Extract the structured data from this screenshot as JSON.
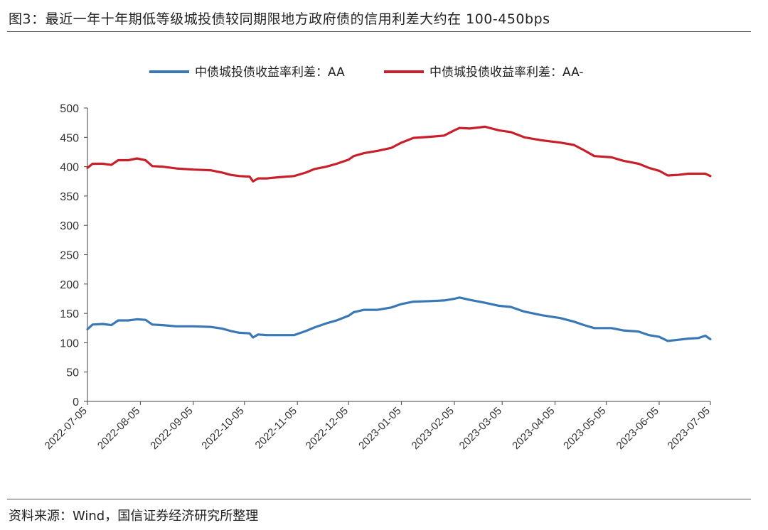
{
  "figure": {
    "title": "图3：最近一年十年期低等级城投债较同期限地方政府债的信用利差大约在 100-450bps",
    "source": "资料来源：Wind，国信证券经济研究所整理"
  },
  "chart_data": {
    "type": "line",
    "title": "",
    "xlabel": "",
    "ylabel": "",
    "ylim": [
      0,
      500
    ],
    "yticks": [
      0,
      50,
      100,
      150,
      200,
      250,
      300,
      350,
      400,
      450,
      500
    ],
    "xlim": [
      "2022-07-05",
      "2023-07-05"
    ],
    "xticks": [
      "2022-07-05",
      "2022-08-05",
      "2022-09-05",
      "2022-10-05",
      "2022-11-05",
      "2022-12-05",
      "2023-01-05",
      "2023-02-05",
      "2023-03-05",
      "2023-04-05",
      "2023-05-05",
      "2023-06-05",
      "2023-07-05"
    ],
    "grid": false,
    "legend_position": "top",
    "series": [
      {
        "name": "中债城投债收益率利差：AA",
        "color": "#3a78b5",
        "points": [
          [
            "2022-07-05",
            123
          ],
          [
            "2022-07-08",
            131
          ],
          [
            "2022-07-14",
            132
          ],
          [
            "2022-07-19",
            130
          ],
          [
            "2022-07-23",
            138
          ],
          [
            "2022-07-29",
            138
          ],
          [
            "2022-08-03",
            140
          ],
          [
            "2022-08-08",
            139
          ],
          [
            "2022-08-12",
            131
          ],
          [
            "2022-08-18",
            130
          ],
          [
            "2022-08-26",
            128
          ],
          [
            "2022-09-05",
            128
          ],
          [
            "2022-09-15",
            127
          ],
          [
            "2022-09-22",
            124
          ],
          [
            "2022-09-27",
            120
          ],
          [
            "2022-10-02",
            117
          ],
          [
            "2022-10-08",
            116
          ],
          [
            "2022-10-10",
            109
          ],
          [
            "2022-10-13",
            114
          ],
          [
            "2022-10-18",
            113
          ],
          [
            "2022-10-25",
            113
          ],
          [
            "2022-11-03",
            113
          ],
          [
            "2022-11-10",
            120
          ],
          [
            "2022-11-15",
            126
          ],
          [
            "2022-11-22",
            133
          ],
          [
            "2022-11-28",
            138
          ],
          [
            "2022-12-05",
            146
          ],
          [
            "2022-12-08",
            152
          ],
          [
            "2022-12-14",
            156
          ],
          [
            "2022-12-22",
            156
          ],
          [
            "2022-12-30",
            160
          ],
          [
            "2023-01-05",
            166
          ],
          [
            "2023-01-12",
            170
          ],
          [
            "2023-01-22",
            171
          ],
          [
            "2023-01-30",
            172
          ],
          [
            "2023-02-05",
            175
          ],
          [
            "2023-02-08",
            177
          ],
          [
            "2023-02-14",
            173
          ],
          [
            "2023-02-23",
            168
          ],
          [
            "2023-03-03",
            163
          ],
          [
            "2023-03-10",
            161
          ],
          [
            "2023-03-18",
            153
          ],
          [
            "2023-03-28",
            147
          ],
          [
            "2023-04-08",
            142
          ],
          [
            "2023-04-16",
            136
          ],
          [
            "2023-04-22",
            130
          ],
          [
            "2023-04-28",
            125
          ],
          [
            "2023-05-08",
            125
          ],
          [
            "2023-05-15",
            121
          ],
          [
            "2023-05-24",
            119
          ],
          [
            "2023-05-30",
            113
          ],
          [
            "2023-06-05",
            110
          ],
          [
            "2023-06-10",
            103
          ],
          [
            "2023-06-16",
            105
          ],
          [
            "2023-06-22",
            107
          ],
          [
            "2023-06-28",
            108
          ],
          [
            "2023-07-02",
            112
          ],
          [
            "2023-07-05",
            106
          ]
        ]
      },
      {
        "name": "中债城投债收益率利差：AA-",
        "color": "#c8202a",
        "points": [
          [
            "2022-07-05",
            398
          ],
          [
            "2022-07-08",
            405
          ],
          [
            "2022-07-14",
            405
          ],
          [
            "2022-07-19",
            403
          ],
          [
            "2022-07-23",
            411
          ],
          [
            "2022-07-29",
            411
          ],
          [
            "2022-08-03",
            414
          ],
          [
            "2022-08-08",
            411
          ],
          [
            "2022-08-12",
            401
          ],
          [
            "2022-08-18",
            400
          ],
          [
            "2022-08-26",
            397
          ],
          [
            "2022-09-05",
            395
          ],
          [
            "2022-09-15",
            394
          ],
          [
            "2022-09-22",
            390
          ],
          [
            "2022-09-27",
            386
          ],
          [
            "2022-10-02",
            384
          ],
          [
            "2022-10-08",
            383
          ],
          [
            "2022-10-10",
            375
          ],
          [
            "2022-10-13",
            380
          ],
          [
            "2022-10-18",
            380
          ],
          [
            "2022-10-25",
            382
          ],
          [
            "2022-11-03",
            384
          ],
          [
            "2022-11-10",
            390
          ],
          [
            "2022-11-15",
            396
          ],
          [
            "2022-11-22",
            400
          ],
          [
            "2022-11-28",
            405
          ],
          [
            "2022-12-05",
            412
          ],
          [
            "2022-12-08",
            418
          ],
          [
            "2022-12-14",
            423
          ],
          [
            "2022-12-22",
            427
          ],
          [
            "2022-12-30",
            432
          ],
          [
            "2023-01-05",
            441
          ],
          [
            "2023-01-12",
            449
          ],
          [
            "2023-01-22",
            451
          ],
          [
            "2023-01-30",
            453
          ],
          [
            "2023-02-05",
            462
          ],
          [
            "2023-02-08",
            466
          ],
          [
            "2023-02-14",
            465
          ],
          [
            "2023-02-23",
            468
          ],
          [
            "2023-03-03",
            462
          ],
          [
            "2023-03-10",
            459
          ],
          [
            "2023-03-18",
            450
          ],
          [
            "2023-03-28",
            445
          ],
          [
            "2023-04-08",
            441
          ],
          [
            "2023-04-16",
            437
          ],
          [
            "2023-04-22",
            428
          ],
          [
            "2023-04-28",
            418
          ],
          [
            "2023-05-08",
            416
          ],
          [
            "2023-05-15",
            410
          ],
          [
            "2023-05-24",
            405
          ],
          [
            "2023-05-30",
            398
          ],
          [
            "2023-06-05",
            393
          ],
          [
            "2023-06-10",
            385
          ],
          [
            "2023-06-16",
            386
          ],
          [
            "2023-06-22",
            388
          ],
          [
            "2023-06-28",
            388
          ],
          [
            "2023-07-02",
            388
          ],
          [
            "2023-07-05",
            384
          ]
        ]
      }
    ]
  }
}
